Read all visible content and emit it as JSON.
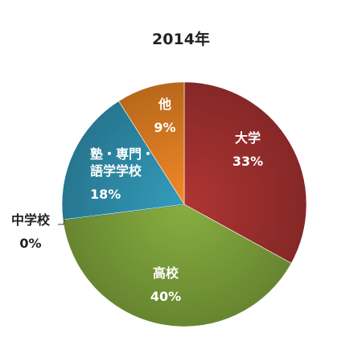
{
  "chart_data": {
    "type": "pie",
    "title": "2014年",
    "slices": [
      {
        "label": "大学",
        "value": 33,
        "value_label": "33%",
        "color": "#a2312f"
      },
      {
        "label": "高校",
        "value": 40,
        "value_label": "40%",
        "color": "#7ea23b"
      },
      {
        "label": "中学校",
        "value": 0,
        "value_label": "0%",
        "color": "#1f6f86"
      },
      {
        "label": "塾・専門・\n語学学校",
        "value": 18,
        "value_label": "18%",
        "color": "#2f90ae"
      },
      {
        "label": "他",
        "value": 9,
        "value_label": "9%",
        "color": "#e07f22"
      }
    ],
    "legend": "none",
    "start_angle": "12 o'clock",
    "direction": "clockwise"
  }
}
